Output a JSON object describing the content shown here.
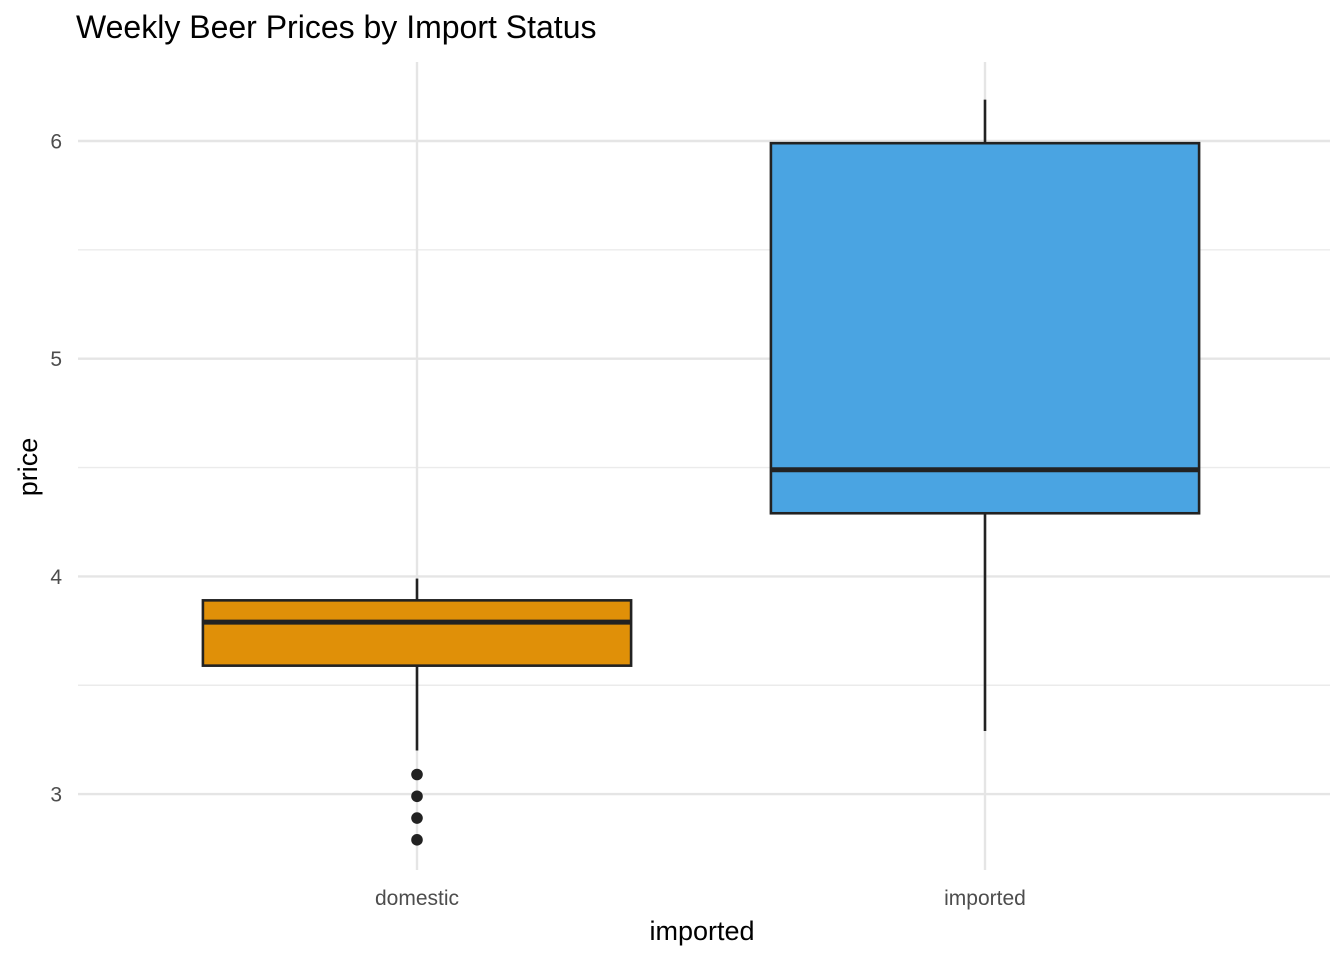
{
  "chart_data": {
    "type": "boxplot",
    "title": "Weekly Beer Prices by Import Status",
    "xlabel": "imported",
    "ylabel": "price",
    "categories": [
      "domestic",
      "imported"
    ],
    "ylim": [
      2.65,
      6.35
    ],
    "y_ticks": [
      3,
      4,
      5,
      6
    ],
    "y_minor_ticks": [
      3.5,
      4.5,
      5.5
    ],
    "grid": true,
    "boxes": [
      {
        "category": "domestic",
        "whisker_low": 3.2,
        "q1": 3.59,
        "median": 3.79,
        "q3": 3.89,
        "whisker_high": 3.99,
        "outliers": [
          3.09,
          2.99,
          2.89,
          2.79
        ],
        "fill": "#E09008"
      },
      {
        "category": "imported",
        "whisker_low": 3.29,
        "q1": 4.29,
        "median": 4.49,
        "q3": 5.99,
        "whisker_high": 6.19,
        "outliers": [],
        "fill": "#4AA4E2"
      }
    ]
  }
}
